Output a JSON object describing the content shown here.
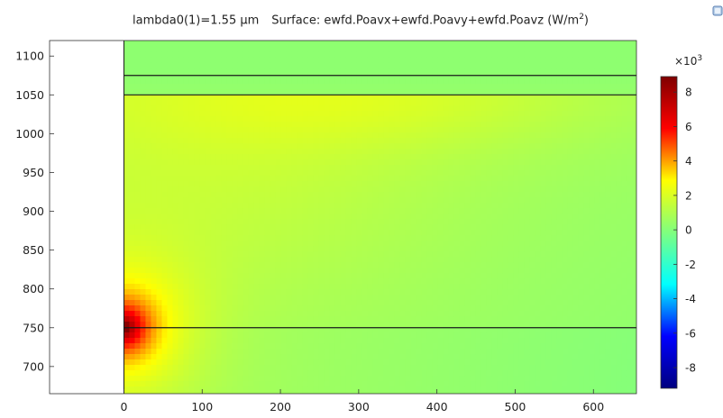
{
  "title": {
    "left": "lambda0(1)=1.55 µm",
    "right_prefix": "Surface: ewfd.Poavx+ewfd.Poavy+ewfd.Poavz (W/m",
    "right_sup": "2",
    "right_suffix": ")"
  },
  "colorbar": {
    "multiplier_base": "×10",
    "multiplier_exp": "3",
    "ticks": [
      8,
      6,
      4,
      2,
      0,
      -2,
      -4,
      -6,
      -8
    ],
    "min": -9.2,
    "max": 8.9,
    "colormap": "rainbow",
    "colors": [
      "#00007f",
      "#0000ff",
      "#00ffff",
      "#7fff7f",
      "#ffff00",
      "#ff0000",
      "#7f0000"
    ]
  },
  "chart_data": {
    "type": "heatmap",
    "title": "lambda0(1)=1.55 µm   Surface: ewfd.Poavx+ewfd.Poavy+ewfd.Poavz (W/m^2)",
    "xlabel": "",
    "ylabel": "",
    "xlim": [
      -95,
      655
    ],
    "ylim": [
      665,
      1120
    ],
    "x_ticks": [
      0,
      100,
      200,
      300,
      400,
      500,
      600
    ],
    "y_ticks": [
      700,
      750,
      800,
      850,
      900,
      950,
      1000,
      1050,
      1100
    ],
    "domain": {
      "x": [
        0,
        655
      ],
      "y": [
        665,
        1120
      ]
    },
    "boundary_lines_y": [
      750,
      1050,
      1075
    ],
    "value_unit": "W/m^2 ×10^3",
    "value_range": [
      -9.2,
      8.9
    ],
    "field_samples": [
      {
        "x": 0,
        "y": 750,
        "value": 8.0
      },
      {
        "x": 30,
        "y": 750,
        "value": 4.5
      },
      {
        "x": 70,
        "y": 750,
        "value": 2.5
      },
      {
        "x": 100,
        "y": 900,
        "value": 1.6
      },
      {
        "x": 300,
        "y": 1040,
        "value": 2.0
      },
      {
        "x": 300,
        "y": 900,
        "value": 1.3
      },
      {
        "x": 600,
        "y": 750,
        "value": 0.6
      },
      {
        "x": 600,
        "y": 1040,
        "value": 1.2
      },
      {
        "x": 300,
        "y": 1100,
        "value": 0.2
      }
    ]
  }
}
